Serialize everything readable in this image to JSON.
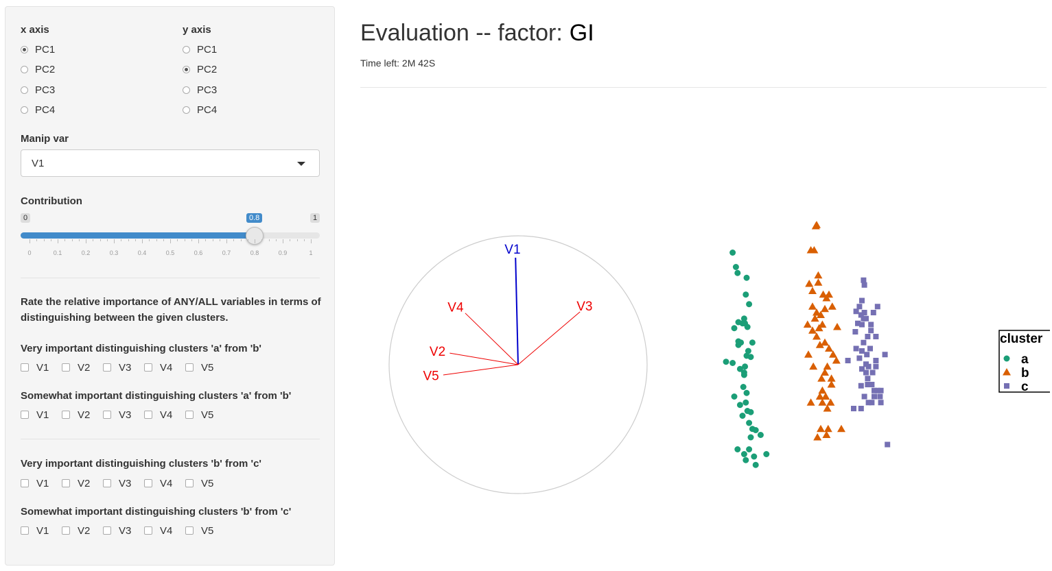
{
  "sidebar": {
    "x_axis": {
      "label": "x axis",
      "options": [
        "PC1",
        "PC2",
        "PC3",
        "PC4"
      ],
      "selected": "PC1"
    },
    "y_axis": {
      "label": "y axis",
      "options": [
        "PC1",
        "PC2",
        "PC3",
        "PC4"
      ],
      "selected": "PC2"
    },
    "manip_var": {
      "label": "Manip var",
      "value": "V1"
    },
    "contribution": {
      "label": "Contribution",
      "min": "0",
      "max": "1",
      "value": "0.8",
      "ticks": [
        "0",
        "0.1",
        "0.2",
        "0.3",
        "0.4",
        "0.5",
        "0.6",
        "0.7",
        "0.8",
        "0.9",
        "1"
      ]
    },
    "instructions": "Rate the relative importance of ANY/ALL variables in terms of distinguishing between the given clusters.",
    "groups": [
      {
        "label": "Very important distinguishing clusters 'a' from 'b'",
        "options": [
          "V1",
          "V2",
          "V3",
          "V4",
          "V5"
        ]
      },
      {
        "label": "Somewhat important distinguishing clusters 'a' from 'b'",
        "options": [
          "V1",
          "V2",
          "V3",
          "V4",
          "V5"
        ]
      },
      {
        "label": "Very important distinguishing clusters 'b' from 'c'",
        "options": [
          "V1",
          "V2",
          "V3",
          "V4",
          "V5"
        ]
      },
      {
        "label": "Somewhat important distinguishing clusters 'b' from 'c'",
        "options": [
          "V1",
          "V2",
          "V3",
          "V4",
          "V5"
        ]
      }
    ]
  },
  "main": {
    "title": "Evaluation -- factor:",
    "factor": "GI",
    "time_left": "Time left: 2M 42S"
  },
  "chart_data": {
    "type": "scatter",
    "axes": [
      {
        "name": "V1",
        "x": -0.02,
        "y": 0.83,
        "color": "#0000cc"
      },
      {
        "name": "V2",
        "x": -0.53,
        "y": 0.09,
        "color": "#ee0000"
      },
      {
        "name": "V3",
        "x": 0.48,
        "y": 0.41,
        "color": "#ee0000"
      },
      {
        "name": "V4",
        "x": -0.41,
        "y": 0.4,
        "color": "#ee0000"
      },
      {
        "name": "V5",
        "x": -0.58,
        "y": -0.08,
        "color": "#ee0000"
      }
    ],
    "legend": {
      "title": "cluster",
      "entries": [
        "a",
        "b",
        "c"
      ],
      "placement": "right"
    },
    "series": [
      {
        "name": "a",
        "color": "#1b9e77",
        "marker": "circle",
        "x": [
          -1.02,
          -0.98,
          -0.96,
          -0.85,
          -1.1,
          -0.88,
          -0.82,
          -0.86,
          -0.9,
          -1.0,
          -0.95,
          -0.87,
          -0.84,
          -0.78,
          -0.95,
          -0.92,
          -0.85,
          -0.8,
          -0.87,
          -1.02,
          -0.93,
          -0.88,
          -0.89,
          -0.93,
          -0.85,
          -1.0,
          -0.86,
          -0.84,
          -0.9,
          -0.8,
          -0.78,
          -0.74,
          -0.68,
          -0.8,
          -0.96,
          -0.82,
          -0.88,
          -0.86,
          -0.76,
          -0.74,
          -0.61,
          -0.95,
          -0.88,
          -0.83,
          -0.82
        ],
        "y": [
          0.9,
          0.78,
          0.73,
          0.69,
          -0.01,
          0.35,
          0.47,
          0.55,
          0.31,
          0.27,
          0.32,
          0.31,
          0.28,
          0.15,
          0.13,
          0.15,
          0.04,
          0.03,
          -0.05,
          -0.02,
          -0.07,
          -0.12,
          -0.22,
          -0.37,
          -0.27,
          -0.3,
          -0.35,
          -0.42,
          -0.46,
          -0.43,
          -0.57,
          -0.58,
          -0.62,
          -0.64,
          -0.74,
          -0.74,
          -0.78,
          -0.83,
          -0.8,
          -0.87,
          -0.78,
          0.16,
          -0.1,
          0.08,
          -0.52
        ]
      },
      {
        "name": "b",
        "color": "#d95f02",
        "marker": "triangle",
        "x": [
          -0.01,
          0.0,
          -0.03,
          -0.07,
          0.02,
          -0.09,
          -0.05,
          0.08,
          0.15,
          0.12,
          -0.05,
          0.1,
          0.0,
          0.05,
          -0.02,
          0.07,
          0.03,
          -0.05,
          0.0,
          0.1,
          0.04,
          0.15,
          0.2,
          0.24,
          0.13,
          0.1,
          0.06,
          0.18,
          0.07,
          0.04,
          0.07,
          0.13,
          0.17,
          -0.07,
          0.05,
          0.14,
          0.3,
          0.01,
          0.12,
          0.11,
          -0.11,
          -0.1,
          -0.04,
          0.02,
          0.19,
          0.25,
          0.18
        ],
        "y": [
          1.12,
          1.13,
          0.92,
          0.92,
          0.71,
          0.64,
          0.58,
          0.55,
          0.55,
          0.52,
          0.45,
          0.43,
          0.4,
          0.38,
          0.35,
          0.3,
          0.27,
          0.25,
          0.2,
          0.15,
          0.13,
          0.1,
          0.05,
          0.0,
          -0.05,
          -0.1,
          -0.15,
          -0.2,
          -0.25,
          -0.3,
          -0.35,
          -0.4,
          -0.35,
          -0.35,
          -0.57,
          -0.57,
          -0.57,
          -0.64,
          -0.62,
          -0.3,
          0.3,
          0.05,
          -0.05,
          0.65,
          0.45,
          0.28,
          -0.15
        ]
      },
      {
        "name": "c",
        "color": "#7570b3",
        "marker": "square",
        "x": [
          0.57,
          0.58,
          0.55,
          0.52,
          0.48,
          0.5,
          0.58,
          0.6,
          0.55,
          0.47,
          0.62,
          0.65,
          0.55,
          0.61,
          0.52,
          0.55,
          0.6,
          0.62,
          0.67,
          0.74,
          0.7,
          0.54,
          0.66,
          0.57,
          0.6,
          0.63,
          0.72,
          0.78,
          0.69,
          0.66,
          0.63,
          0.67,
          0.57,
          0.74,
          0.86,
          0.72,
          0.38,
          0.48,
          0.77,
          0.78,
          0.58,
          0.54,
          0.63,
          0.83,
          0.54,
          0.45,
          0.7,
          0.68,
          0.62,
          0.72
        ],
        "y": [
          0.67,
          0.63,
          0.5,
          0.45,
          0.41,
          0.31,
          0.4,
          0.35,
          0.3,
          0.24,
          0.2,
          0.1,
          0.08,
          0.05,
          0.02,
          -0.07,
          -0.1,
          -0.15,
          -0.2,
          -0.25,
          -0.25,
          -0.21,
          0.25,
          0.15,
          -0.03,
          -0.05,
          0.0,
          -0.25,
          0.4,
          0.3,
          -0.35,
          -0.35,
          0.35,
          0.45,
          -0.7,
          0.2,
          0.0,
          0.1,
          -0.3,
          -0.35,
          -0.3,
          -0.4,
          -0.2,
          0.05,
          0.38,
          -0.4,
          -0.3,
          -0.1,
          -0.2,
          -0.05
        ]
      }
    ]
  }
}
